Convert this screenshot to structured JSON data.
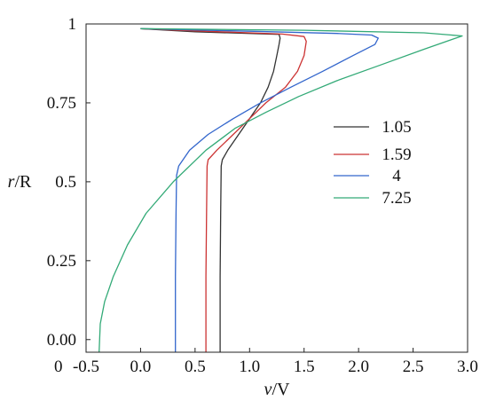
{
  "chart_data": {
    "type": "line",
    "title": "",
    "xlabel_italic": "v",
    "xlabel_rest": "/V",
    "ylabel_italic": "r",
    "ylabel_rest": "/R",
    "xlim": [
      -0.5,
      3.0
    ],
    "ylim": [
      -0.04,
      1.0
    ],
    "grid": false,
    "legend_position": "right-middle",
    "x_ticks": [
      {
        "value": -0.5,
        "label": "-0.5"
      },
      {
        "value": 0.0,
        "label": "0.0"
      },
      {
        "value": 0.5,
        "label": "0.5"
      },
      {
        "value": 1.0,
        "label": "1.0"
      },
      {
        "value": 1.5,
        "label": "1.5"
      },
      {
        "value": 2.0,
        "label": "2.0"
      },
      {
        "value": 2.5,
        "label": "2.5"
      },
      {
        "value": 3.0,
        "label": "3.0"
      }
    ],
    "y_ticks": [
      {
        "value": 0.0,
        "label": "0.00"
      },
      {
        "value": 0.25,
        "label": "0.25"
      },
      {
        "value": 0.5,
        "label": "0.5"
      },
      {
        "value": 0.75,
        "label": "0.75"
      },
      {
        "value": 1.0,
        "label": "1"
      }
    ],
    "origin_label": "0",
    "series": [
      {
        "name": "1.05",
        "color": "#333333",
        "points": [
          [
            0.73,
            -0.04
          ],
          [
            0.73,
            0.2
          ],
          [
            0.735,
            0.4
          ],
          [
            0.74,
            0.55
          ],
          [
            0.75,
            0.57
          ],
          [
            0.8,
            0.6
          ],
          [
            0.9,
            0.65
          ],
          [
            1.0,
            0.7
          ],
          [
            1.1,
            0.75
          ],
          [
            1.17,
            0.8
          ],
          [
            1.22,
            0.85
          ],
          [
            1.25,
            0.9
          ],
          [
            1.27,
            0.935
          ],
          [
            1.28,
            0.955
          ],
          [
            1.27,
            0.967
          ],
          [
            1.0,
            0.97
          ],
          [
            0.5,
            0.975
          ],
          [
            0.0,
            0.985
          ]
        ]
      },
      {
        "name": "1.59",
        "color": "#cc3333",
        "points": [
          [
            0.6,
            -0.04
          ],
          [
            0.6,
            0.2
          ],
          [
            0.605,
            0.4
          ],
          [
            0.61,
            0.55
          ],
          [
            0.62,
            0.57
          ],
          [
            0.7,
            0.6
          ],
          [
            0.85,
            0.65
          ],
          [
            1.0,
            0.7
          ],
          [
            1.15,
            0.75
          ],
          [
            1.33,
            0.8
          ],
          [
            1.44,
            0.85
          ],
          [
            1.5,
            0.9
          ],
          [
            1.52,
            0.945
          ],
          [
            1.5,
            0.96
          ],
          [
            1.3,
            0.968
          ],
          [
            1.0,
            0.972
          ],
          [
            0.5,
            0.978
          ],
          [
            0.0,
            0.985
          ]
        ]
      },
      {
        "name": "4",
        "color": "#3366cc",
        "points": [
          [
            0.32,
            -0.04
          ],
          [
            0.32,
            0.2
          ],
          [
            0.325,
            0.4
          ],
          [
            0.33,
            0.52
          ],
          [
            0.35,
            0.55
          ],
          [
            0.45,
            0.6
          ],
          [
            0.62,
            0.65
          ],
          [
            0.85,
            0.7
          ],
          [
            1.1,
            0.75
          ],
          [
            1.38,
            0.8
          ],
          [
            1.67,
            0.85
          ],
          [
            1.95,
            0.9
          ],
          [
            2.15,
            0.935
          ],
          [
            2.18,
            0.955
          ],
          [
            2.12,
            0.965
          ],
          [
            1.8,
            0.97
          ],
          [
            1.0,
            0.977
          ],
          [
            0.0,
            0.985
          ]
        ]
      },
      {
        "name": "7.25",
        "color": "#33aa77",
        "points": [
          [
            -0.38,
            -0.04
          ],
          [
            -0.37,
            0.05
          ],
          [
            -0.33,
            0.12
          ],
          [
            -0.25,
            0.2
          ],
          [
            -0.12,
            0.3
          ],
          [
            0.05,
            0.4
          ],
          [
            0.3,
            0.5
          ],
          [
            0.6,
            0.6
          ],
          [
            0.87,
            0.67
          ],
          [
            1.15,
            0.72
          ],
          [
            1.45,
            0.77
          ],
          [
            1.8,
            0.82
          ],
          [
            2.2,
            0.87
          ],
          [
            2.6,
            0.92
          ],
          [
            2.85,
            0.95
          ],
          [
            2.95,
            0.962
          ],
          [
            2.6,
            0.972
          ],
          [
            1.5,
            0.98
          ],
          [
            0.0,
            0.985
          ]
        ]
      }
    ]
  }
}
